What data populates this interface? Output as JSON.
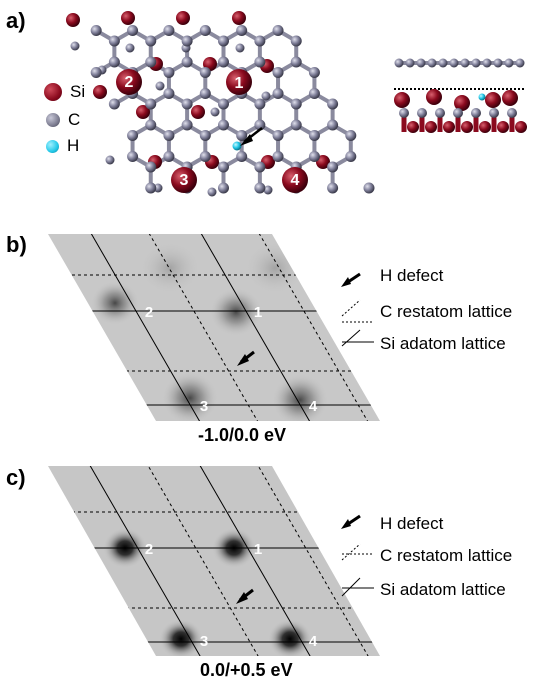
{
  "panels": {
    "a": {
      "label": "a)",
      "legend": [
        {
          "symbol": "Si",
          "color": "#8b0a1e"
        },
        {
          "symbol": "C",
          "color": "#7c7c90"
        },
        {
          "symbol": "H",
          "color": "#22c8e8"
        }
      ],
      "site_labels": [
        "1",
        "2",
        "3",
        "4"
      ]
    },
    "b": {
      "label": "b)",
      "energy": "-1.0/0.0 eV",
      "site_labels": [
        "1",
        "2",
        "3",
        "4"
      ]
    },
    "c": {
      "label": "c)",
      "energy": "0.0/+0.5 eV",
      "site_labels": [
        "1",
        "2",
        "3",
        "4"
      ]
    }
  },
  "legend_bc": {
    "h_defect": "H defect",
    "c_restatom": "C restatom lattice",
    "si_adatom": "Si adatom lattice"
  },
  "colors": {
    "si": "#8b0a1e",
    "c": "#7c7c90",
    "h": "#22c8e8",
    "stm_bg": "#c4c4c4"
  }
}
